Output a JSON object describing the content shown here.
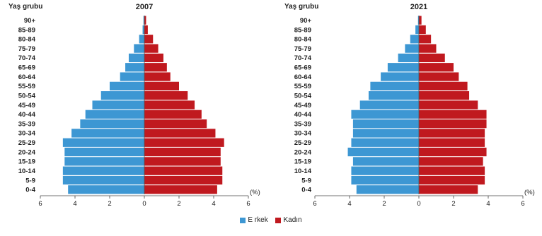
{
  "chart_data": {
    "type": "bar",
    "orientation": "horizontal",
    "y_axis_title": "Yaş grubu",
    "unit_label": "(%)",
    "age_groups": [
      "0-4",
      "5-9",
      "10-14",
      "15-19",
      "20-24",
      "25-29",
      "30-34",
      "35-39",
      "40-44",
      "45-49",
      "50-54",
      "55-59",
      "60-64",
      "65-69",
      "70-74",
      "75-79",
      "80-84",
      "85-89",
      "90+"
    ],
    "xlim": [
      -6,
      6
    ],
    "x_ticks": [
      6,
      4,
      2,
      0,
      2,
      4,
      6
    ],
    "legend": [
      {
        "name": "E rkek",
        "color": "#3d97d3"
      },
      {
        "name": "Kadın",
        "color": "#c0191f"
      }
    ],
    "panels": [
      {
        "title": "2007",
        "series": [
          {
            "name": "E rkek",
            "values": [
              4.4,
              4.7,
              4.7,
              4.6,
              4.6,
              4.7,
              4.2,
              3.7,
              3.4,
              3.0,
              2.5,
              2.0,
              1.4,
              1.1,
              0.9,
              0.6,
              0.3,
              0.1,
              0.05
            ]
          },
          {
            "name": "Kadın",
            "values": [
              4.2,
              4.5,
              4.5,
              4.4,
              4.4,
              4.6,
              4.1,
              3.6,
              3.3,
              2.9,
              2.5,
              2.0,
              1.5,
              1.3,
              1.1,
              0.8,
              0.5,
              0.2,
              0.1
            ]
          }
        ]
      },
      {
        "title": "2021",
        "series": [
          {
            "name": "E rkek",
            "values": [
              3.6,
              3.9,
              3.9,
              3.8,
              4.1,
              3.9,
              3.8,
              3.8,
              3.9,
              3.4,
              2.9,
              2.8,
              2.2,
              1.8,
              1.2,
              0.8,
              0.5,
              0.2,
              0.05
            ]
          },
          {
            "name": "Kadın",
            "values": [
              3.4,
              3.8,
              3.8,
              3.7,
              3.9,
              3.8,
              3.8,
              3.9,
              3.9,
              3.4,
              2.9,
              2.8,
              2.3,
              2.0,
              1.5,
              1.0,
              0.7,
              0.4,
              0.15
            ]
          }
        ]
      }
    ]
  }
}
